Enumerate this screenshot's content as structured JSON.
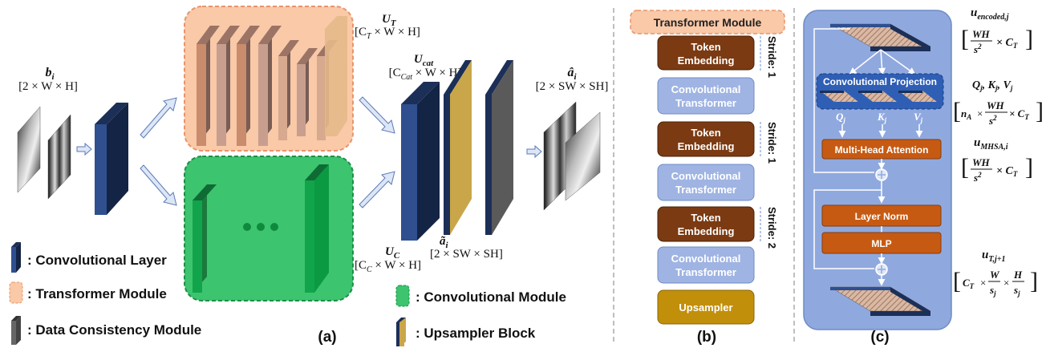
{
  "colors": {
    "conv_layer": "#2f4f8f",
    "transformer": "#f9c9a8",
    "conv_module": "#3cc46f",
    "dc_module": "#555555",
    "upsampler": "#c9a64a",
    "token_embedding": "#7b3a12",
    "conv_transformer": "#9fb4e3",
    "upsampler_box": "#c28f0a",
    "mha": "#c75a12",
    "panel_c": "#8fa9df"
  },
  "panel_a": {
    "label": "(a)",
    "b_i": "b",
    "b_i_sub": "i",
    "b_i_dim": "[2 × W × H]",
    "u_t": "U",
    "u_t_sub": "T",
    "u_t_dim": "[C",
    "u_t_dim_sub": "T",
    "u_t_dim_rest": " × W × H]",
    "u_cat": "U",
    "u_cat_sub": "cat",
    "u_cat_dim": "[C",
    "u_cat_dim_sub": "Cat",
    "u_cat_dim_rest": " × W × H]",
    "u_c": "U",
    "u_c_sub": "C",
    "u_c_dim": "[C",
    "u_c_dim_sub": "C",
    "u_c_dim_rest": " × W × H]",
    "a_tilde": "ã",
    "a_tilde_sub": "i",
    "a_tilde_dim": "[2 × SW × SH]",
    "a_hat": "â",
    "a_hat_sub": "i",
    "a_hat_dim": "[2 × SW × SH]",
    "dots": "• • •",
    "legend": {
      "conv_layer": ": Convolutional Layer",
      "transformer": ": Transformer Module",
      "dc_module": ": Data Consistency Module",
      "conv_module": ": Convolutional Module",
      "upsampler": ": Upsampler Block"
    }
  },
  "panel_b": {
    "label": "(b)",
    "header": "Transformer Module",
    "token_line1": "Token",
    "token_line2": "Embedding",
    "conv_line1": "Convolutional",
    "conv_line2": "Transformer",
    "upsampler": "Upsampler",
    "stride1a": "Stride: 1",
    "stride1b": "Stride: 1",
    "stride2": "Stride: 2"
  },
  "panel_c": {
    "label": "(c)",
    "conv_projection": "Convolutional Projection",
    "q": "Q",
    "q_sub": "j",
    "k": "K",
    "k_sub": "j",
    "v": "V",
    "v_sub": "j",
    "mha": "Multi-Head Attention",
    "layer_norm": "Layer Norm",
    "mlp": "MLP",
    "u_encoded": "u",
    "u_encoded_sub": "encoded,j",
    "u_encoded_dim_num": "WH",
    "u_encoded_dim_den": "s",
    "u_encoded_dim_den_sup": "2",
    "u_encoded_dim_rest": "× C",
    "u_encoded_dim_rest_sub": "T",
    "qkv_title": "Q",
    "qkv_title_sub": "j",
    "qkv_title_k": ", K",
    "qkv_title_k_sub": "j",
    "qkv_title_v": ", V",
    "qkv_title_v_sub": "j",
    "qkv_dim_pre": "n",
    "qkv_dim_pre_sub": "A",
    "qkv_dim_times": "×",
    "qkv_dim_num": "WH",
    "qkv_dim_den": "s",
    "qkv_dim_den_sup": "2",
    "qkv_dim_rest": "× C",
    "qkv_dim_rest_sub": "T",
    "u_mhsa": "u",
    "u_mhsa_sub": "MHSA,i",
    "u_mhsa_dim_num": "WH",
    "u_mhsa_dim_den": "s",
    "u_mhsa_dim_den_sup": "2",
    "u_mhsa_dim_rest": "× C",
    "u_mhsa_dim_rest_sub": "T",
    "u_t_next": "u",
    "u_t_next_sub": "T,j+1",
    "u_t_next_c": "C",
    "u_t_next_c_sub": "T",
    "u_t_next_times": "×",
    "u_t_next_w": "W",
    "u_t_next_sj": "s",
    "u_t_next_sj_sub": "j",
    "u_t_next_h": "H",
    "u_t_next_sj2": "s",
    "u_t_next_sj2_sub": "j"
  }
}
